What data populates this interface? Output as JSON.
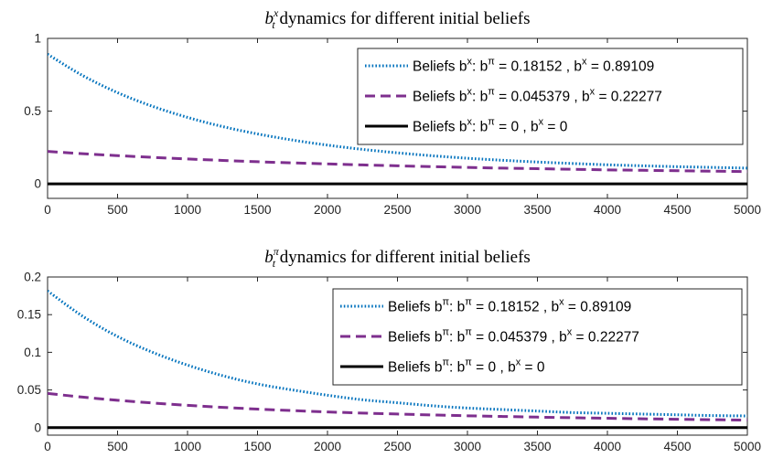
{
  "chart_data": [
    {
      "type": "line",
      "title_base": "b",
      "title_sup": "x",
      "title_sub": "t",
      "title_rest": " dynamics for different initial beliefs",
      "xlim": [
        0,
        5000
      ],
      "ylim": [
        -0.1,
        1
      ],
      "xticks": [
        0,
        500,
        1000,
        1500,
        2000,
        2500,
        3000,
        3500,
        4000,
        4500,
        5000
      ],
      "yticks": [
        0,
        0.5,
        1
      ],
      "ytick_labels": [
        "0",
        "0.5",
        "1"
      ],
      "legend_placement": "top-right",
      "series": [
        {
          "name": "Beliefs b^x: b^π = 0.18152 , b^x = 0.89109",
          "legend": {
            "pre": "Beliefs b",
            "sup1": "x",
            "mid": ": b",
            "sup2": "π",
            "mid2": " = 0.18152 , b",
            "sup3": "x",
            "post": " = 0.89109"
          },
          "color": "#0072BD",
          "style": "dotted",
          "x": [
            0,
            250,
            500,
            750,
            1000,
            1250,
            1500,
            1750,
            2000,
            2250,
            2500,
            2750,
            3000,
            3250,
            3500,
            3750,
            4000,
            4250,
            4500,
            4750,
            5000
          ],
          "y": [
            0.891,
            0.745,
            0.627,
            0.533,
            0.457,
            0.394,
            0.343,
            0.301,
            0.266,
            0.237,
            0.213,
            0.193,
            0.176,
            0.162,
            0.15,
            0.14,
            0.131,
            0.124,
            0.118,
            0.113,
            0.108
          ]
        },
        {
          "name": "Beliefs b^x: b^π = 0.045379 , b^x = 0.22277",
          "legend": {
            "pre": "Beliefs b",
            "sup1": "x",
            "mid": ": b",
            "sup2": "π",
            "mid2": " = 0.045379 , b",
            "sup3": "x",
            "post": " = 0.22277"
          },
          "color": "#7E2F8E",
          "style": "dashed",
          "x": [
            0,
            250,
            500,
            750,
            1000,
            1250,
            1500,
            1750,
            2000,
            2250,
            2500,
            2750,
            3000,
            3250,
            3500,
            3750,
            4000,
            4250,
            4500,
            4750,
            5000
          ],
          "y": [
            0.223,
            0.207,
            0.194,
            0.182,
            0.171,
            0.161,
            0.152,
            0.144,
            0.137,
            0.13,
            0.124,
            0.118,
            0.113,
            0.108,
            0.104,
            0.1,
            0.096,
            0.093,
            0.09,
            0.087,
            0.084
          ]
        },
        {
          "name": "Beliefs b^x: b^π = 0 , b^x = 0",
          "legend": {
            "pre": "Beliefs b",
            "sup1": "x",
            "mid": ": b",
            "sup2": "π",
            "mid2": " = 0 , b",
            "sup3": "x",
            "post": " = 0"
          },
          "color": "#000000",
          "style": "solid",
          "x": [
            0,
            5000
          ],
          "y": [
            0,
            0
          ]
        }
      ]
    },
    {
      "type": "line",
      "title_base": "b",
      "title_sup": "π",
      "title_sub": "t",
      "title_rest": " dynamics for different initial beliefs",
      "xlim": [
        0,
        5000
      ],
      "ylim": [
        -0.01,
        0.2
      ],
      "xticks": [
        0,
        500,
        1000,
        1500,
        2000,
        2500,
        3000,
        3500,
        4000,
        4500,
        5000
      ],
      "yticks": [
        0,
        0.05,
        0.1,
        0.15,
        0.2
      ],
      "ytick_labels": [
        "0",
        "0.05",
        "0.1",
        "0.15",
        "0.2"
      ],
      "legend_placement": "top-right",
      "series": [
        {
          "name": "Beliefs b^π: b^π = 0.18152 , b^x = 0.89109",
          "legend": {
            "pre": "Beliefs b",
            "sup1": "π",
            "mid": ": b",
            "sup2": "π",
            "mid2": " = 0.18152 , b",
            "sup3": "x",
            "post": " = 0.89109"
          },
          "color": "#0072BD",
          "style": "dotted",
          "x": [
            0,
            250,
            500,
            750,
            1000,
            1250,
            1500,
            1750,
            2000,
            2250,
            2500,
            2750,
            3000,
            3250,
            3500,
            3750,
            4000,
            4250,
            4500,
            4750,
            5000
          ],
          "y": [
            0.1815,
            0.148,
            0.121,
            0.1,
            0.083,
            0.069,
            0.058,
            0.05,
            0.043,
            0.037,
            0.033,
            0.029,
            0.026,
            0.024,
            0.022,
            0.02,
            0.019,
            0.018,
            0.017,
            0.016,
            0.0155
          ]
        },
        {
          "name": "Beliefs b^π: b^π = 0.045379 , b^x = 0.22277",
          "legend": {
            "pre": "Beliefs b",
            "sup1": "π",
            "mid": ": b",
            "sup2": "π",
            "mid2": " = 0.045379 , b",
            "sup3": "x",
            "post": " = 0.22277"
          },
          "color": "#7E2F8E",
          "style": "dashed",
          "x": [
            0,
            250,
            500,
            750,
            1000,
            1250,
            1500,
            1750,
            2000,
            2250,
            2500,
            2750,
            3000,
            3250,
            3500,
            3750,
            4000,
            4250,
            4500,
            4750,
            5000
          ],
          "y": [
            0.0454,
            0.0405,
            0.0363,
            0.0327,
            0.0296,
            0.0269,
            0.0246,
            0.0226,
            0.0208,
            0.0193,
            0.018,
            0.0168,
            0.0157,
            0.0148,
            0.0139,
            0.0131,
            0.0124,
            0.0117,
            0.0111,
            0.0105,
            0.01
          ]
        },
        {
          "name": "Beliefs b^π: b^π = 0 , b^x = 0",
          "legend": {
            "pre": "Beliefs b",
            "sup1": "π",
            "mid": ": b",
            "sup2": "π",
            "mid2": " = 0 , b",
            "sup3": "x",
            "post": " = 0"
          },
          "color": "#000000",
          "style": "solid",
          "x": [
            0,
            5000
          ],
          "y": [
            0,
            0
          ]
        }
      ]
    }
  ]
}
